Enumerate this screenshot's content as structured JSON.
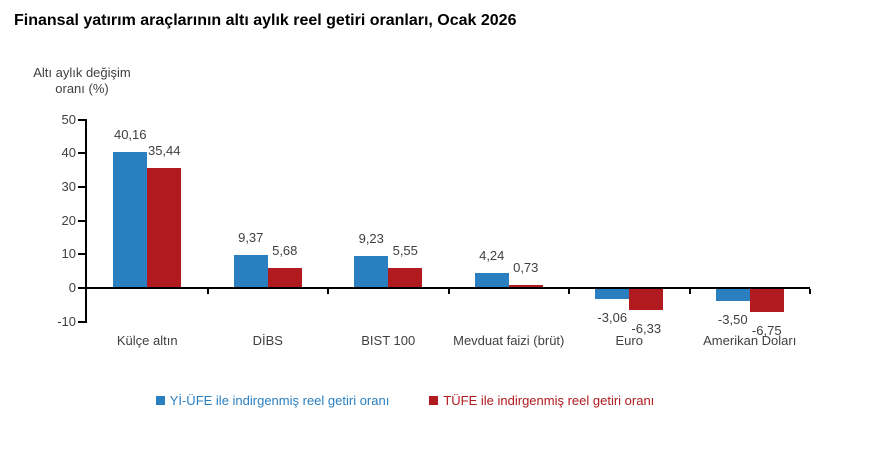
{
  "chart_data": {
    "type": "bar",
    "title": "Finansal yatırım araçlarının altı aylık reel getiri oranları, Ocak 2026",
    "y_axis_title_lines": [
      "Altı aylık değişim",
      "oranı (%)"
    ],
    "ylabel": "Altı aylık değişim oranı (%)",
    "categories": [
      "Külçe altın",
      "DİBS",
      "BIST 100",
      "Mevduat faizi (brüt)",
      "Euro",
      "Amerikan Doları"
    ],
    "series": [
      {
        "name": "Yİ-ÜFE ile indirgenmiş reel getiri oranı",
        "color": "#2A7FC1",
        "values": [
          40.16,
          9.37,
          9.23,
          4.24,
          -3.06,
          -3.5
        ],
        "value_labels": [
          "40,16",
          "9,37",
          "9,23",
          "4,24",
          "-3,06",
          "-3,50"
        ]
      },
      {
        "name": "TÜFE ile indirgenmiş reel getiri oranı",
        "color": "#B11A1E",
        "values": [
          35.44,
          5.68,
          5.55,
          0.73,
          -6.33,
          -6.75
        ],
        "value_labels": [
          "35,44",
          "5,68",
          "5,55",
          "0,73",
          "-6,33",
          "-6,75"
        ]
      }
    ],
    "yticks": [
      50,
      40,
      30,
      20,
      10,
      0,
      -10
    ],
    "ylim": [
      -10,
      50
    ],
    "grid": false,
    "legend_position": "bottom",
    "axis_color": "#000000",
    "label_color": "#404040",
    "background_color": "#ffffff"
  }
}
